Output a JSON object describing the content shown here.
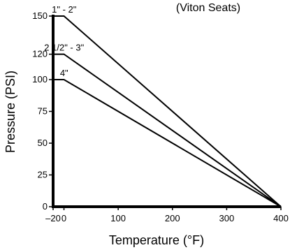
{
  "chart_data": {
    "type": "line",
    "subtitle": "(Viton Seats)",
    "xlabel": "Temperature (°F)",
    "ylabel": "Pressure (PSI)",
    "xlim": [
      -20,
      400
    ],
    "ylim": [
      0,
      150
    ],
    "x_ticks": [
      {
        "value": -20,
        "label": "–20"
      },
      {
        "value": 0,
        "label": "0"
      },
      {
        "value": 100,
        "label": "100"
      },
      {
        "value": 200,
        "label": "200"
      },
      {
        "value": 300,
        "label": "300"
      },
      {
        "value": 400,
        "label": "400"
      }
    ],
    "y_ticks": [
      {
        "value": 0,
        "label": "0"
      },
      {
        "value": 25,
        "label": "25"
      },
      {
        "value": 50,
        "label": "50"
      },
      {
        "value": 75,
        "label": "75"
      },
      {
        "value": 100,
        "label": "100"
      },
      {
        "value": 120,
        "label": "120"
      },
      {
        "value": 150,
        "label": "150"
      }
    ],
    "grid": false,
    "legend": "none",
    "series": [
      {
        "name": "1\" - 2\"",
        "x": [
          -20,
          0,
          400
        ],
        "y": [
          150,
          150,
          0
        ]
      },
      {
        "name": "2 1/2\" - 3\"",
        "x": [
          -20,
          0,
          400
        ],
        "y": [
          120,
          120,
          0
        ]
      },
      {
        "name": "4\"",
        "x": [
          -20,
          0,
          400
        ],
        "y": [
          100,
          100,
          0
        ]
      }
    ],
    "line_color": "#000000"
  }
}
